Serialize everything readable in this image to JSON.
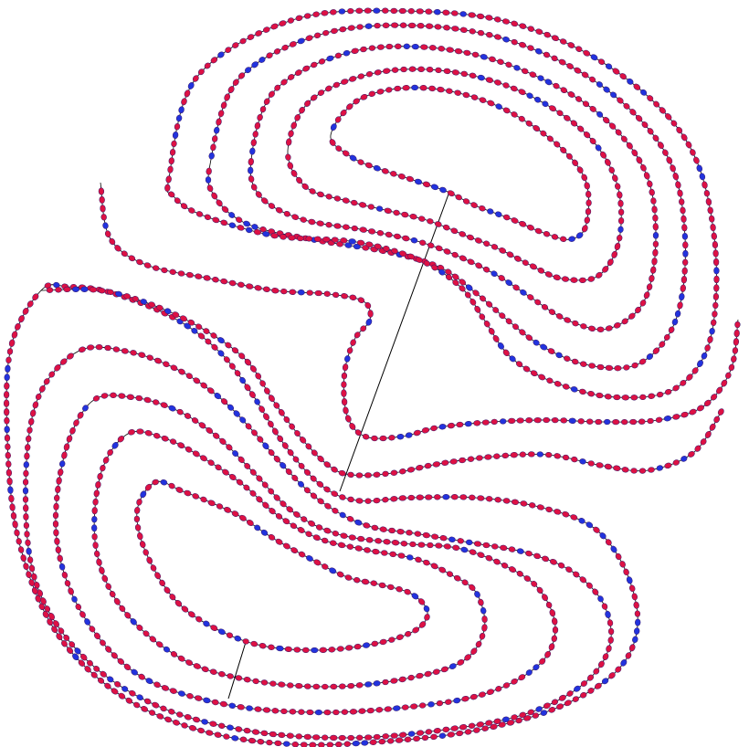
{
  "diagram": {
    "kind": "traced-closed-curve",
    "colors": {
      "background": "#ffffff",
      "line": "#000000",
      "node_red": "#dd1144",
      "node_blue": "#2233dd",
      "node_stroke": "#3a1a6a"
    },
    "blue_node_ratio": 0.13,
    "node_spacing_hint": 9.5
  }
}
